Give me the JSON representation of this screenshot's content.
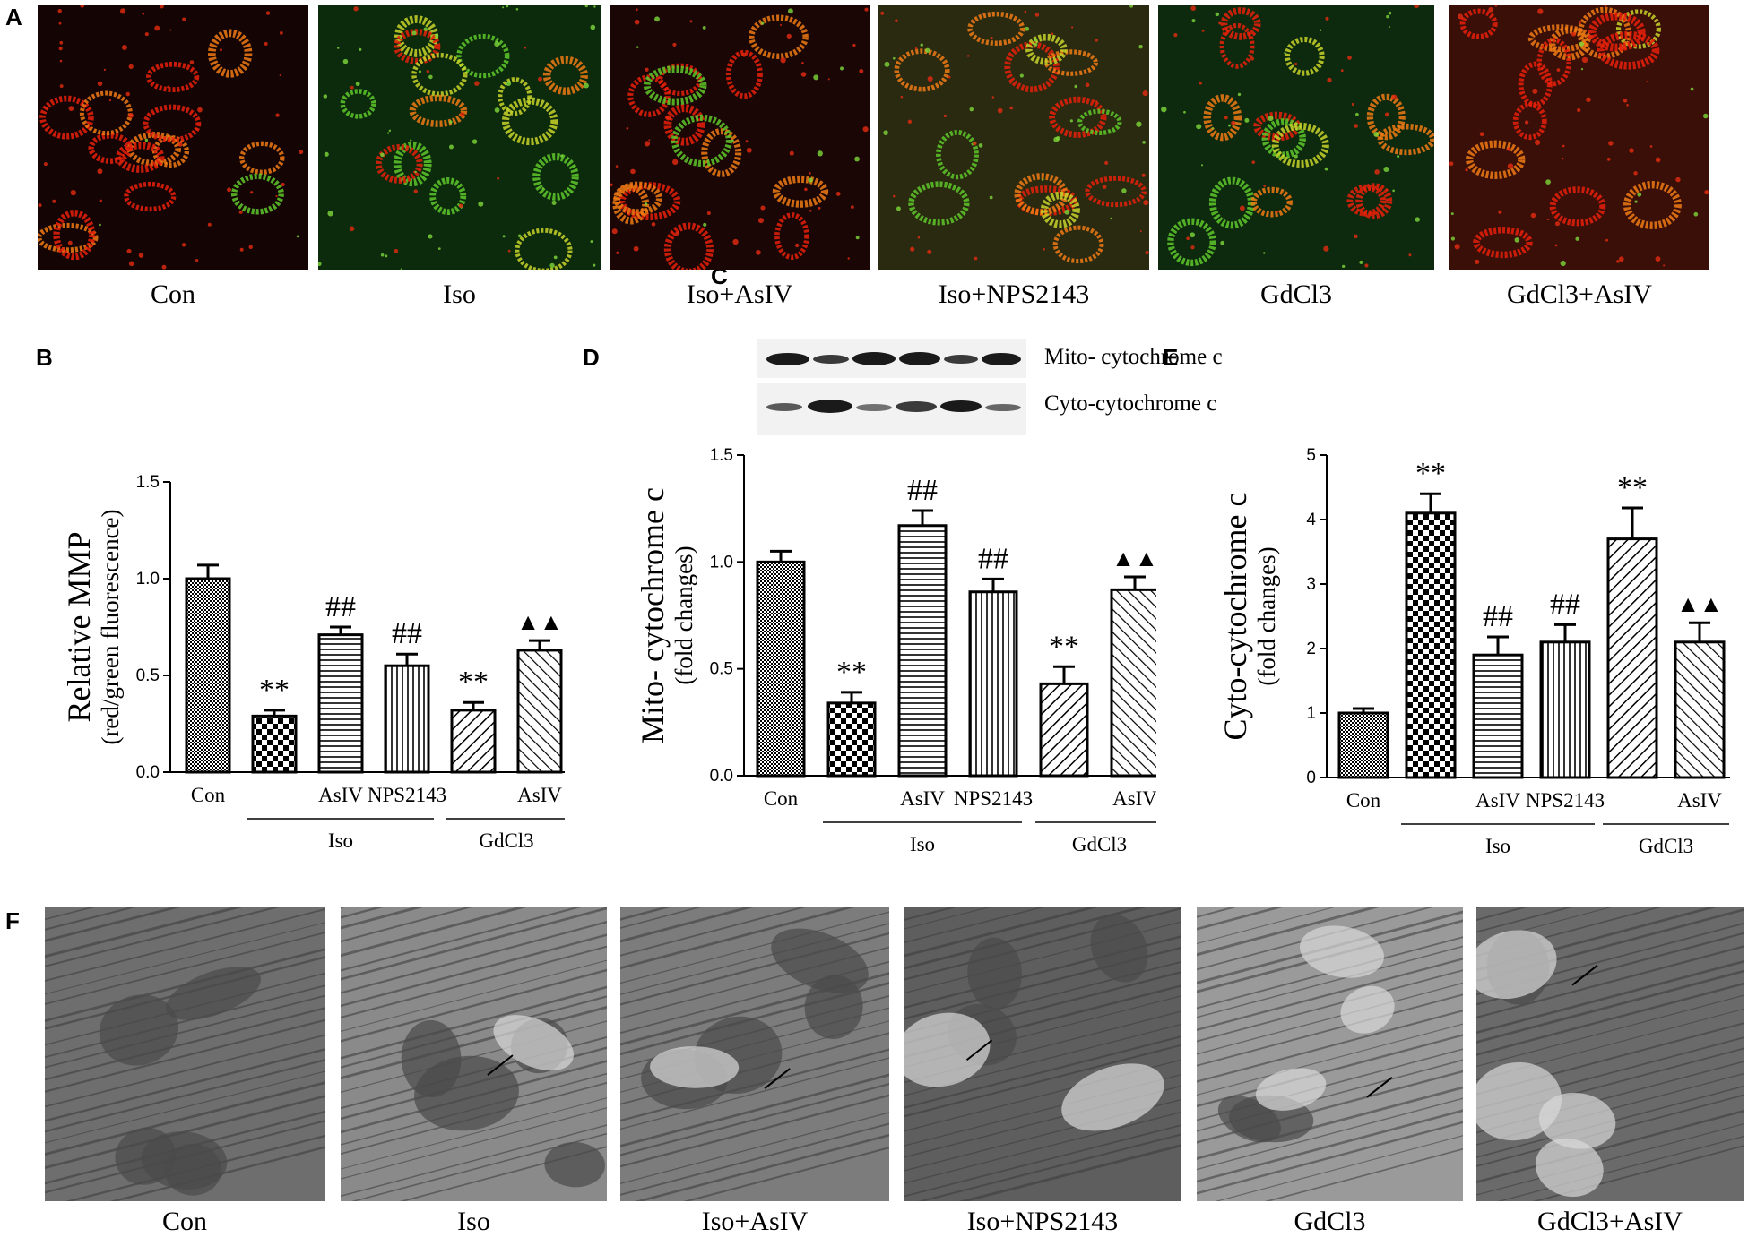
{
  "panels": {
    "A": "A",
    "B": "B",
    "C": "C",
    "D": "D",
    "E": "E",
    "F": "F"
  },
  "fluorescence": {
    "captions": [
      "Con",
      "Iso",
      "Iso+AsIV",
      "Iso+NPS2143",
      "GdCl3",
      "GdCl3+AsIV"
    ]
  },
  "em": {
    "captions": [
      "Con",
      "Iso",
      "Iso+AsIV",
      "Iso+NPS2143",
      "GdCl3",
      "GdCl3+AsIV"
    ]
  },
  "western_blot": {
    "rows": [
      "Mito- cytochrome c",
      "Cyto-cytochrome c"
    ]
  },
  "colors": {
    "bar_fill": "#ffffff",
    "axis": "#000000",
    "mito_red": "#e8200a",
    "mito_green": "#2fb82a",
    "em_gray": "#8a8a8a"
  },
  "chart_data": [
    {
      "type": "bar",
      "panel": "B",
      "ylabel": "Relative MMP",
      "ylabel2": "(red/green fluorescence)",
      "categories": [
        "Con",
        "",
        "AsIV",
        "NPS2143",
        "",
        "AsIV"
      ],
      "groups": [
        {
          "label": "Iso",
          "span": [
            1,
            3
          ]
        },
        {
          "label": "GdCl3",
          "span": [
            4,
            5
          ]
        }
      ],
      "values": [
        1.0,
        0.29,
        0.71,
        0.55,
        0.32,
        0.63
      ],
      "errors": [
        0.07,
        0.03,
        0.04,
        0.06,
        0.04,
        0.05
      ],
      "annotations": [
        "",
        "**",
        "##",
        "##",
        "**",
        "▲▲"
      ],
      "patterns": [
        "dots",
        "checker",
        "hlines",
        "vlines",
        "diag",
        "diag2"
      ],
      "ylim": [
        0,
        1.5
      ],
      "yticks": [
        "0.0",
        "0.5",
        "1.0",
        "1.5"
      ]
    },
    {
      "type": "bar",
      "panel": "D",
      "ylabel": "Mito- cytochrome c",
      "ylabel2": "(fold changes)",
      "categories": [
        "Con",
        "",
        "AsIV",
        "NPS2143",
        "",
        "AsIV"
      ],
      "groups": [
        {
          "label": "Iso",
          "span": [
            1,
            3
          ]
        },
        {
          "label": "GdCl3",
          "span": [
            4,
            5
          ]
        }
      ],
      "values": [
        1.0,
        0.34,
        1.17,
        0.86,
        0.43,
        0.87
      ],
      "errors": [
        0.05,
        0.05,
        0.07,
        0.06,
        0.08,
        0.06
      ],
      "annotations": [
        "",
        "**",
        "##",
        "##",
        "**",
        "▲▲"
      ],
      "patterns": [
        "dots",
        "checker",
        "hlines",
        "vlines",
        "diag",
        "diag2"
      ],
      "ylim": [
        0,
        1.5
      ],
      "yticks": [
        "0.0",
        "0.5",
        "1.0",
        "1.5"
      ]
    },
    {
      "type": "bar",
      "panel": "E",
      "ylabel": "Cyto-cytochrome c",
      "ylabel2": "(fold changes)",
      "categories": [
        "Con",
        "",
        "AsIV",
        "NPS2143",
        "",
        "AsIV"
      ],
      "groups": [
        {
          "label": "Iso",
          "span": [
            1,
            3
          ]
        },
        {
          "label": "GdCl3",
          "span": [
            4,
            5
          ]
        }
      ],
      "values": [
        1.0,
        4.1,
        1.9,
        2.1,
        3.7,
        2.1
      ],
      "errors": [
        0.07,
        0.3,
        0.28,
        0.27,
        0.48,
        0.3
      ],
      "annotations": [
        "",
        "**",
        "##",
        "##",
        "**",
        "▲▲"
      ],
      "patterns": [
        "dots",
        "checker",
        "hlines",
        "vlines",
        "diag",
        "diag2"
      ],
      "ylim": [
        0,
        5
      ],
      "yticks": [
        "0",
        "1",
        "2",
        "3",
        "4",
        "5"
      ]
    }
  ]
}
